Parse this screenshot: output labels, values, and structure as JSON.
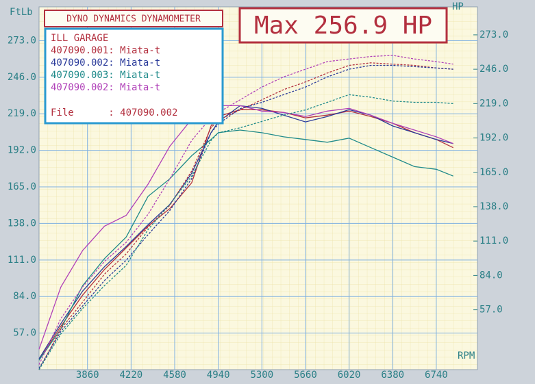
{
  "chart_data": {
    "type": "line",
    "header": "DYNO DYNAMICS DYNAMOMETER",
    "max_label": "Max 256.9 HP",
    "legend_title": "ILL GARAGE",
    "file_line": "File      : 407090.002",
    "ylabel": "FtLb",
    "y2label": "HP",
    "xlabel": "RPM",
    "grid": true,
    "x": [
      3460,
      3640,
      3820,
      4000,
      4180,
      4360,
      4540,
      4720,
      4880,
      4940,
      5120,
      5300,
      5480,
      5660,
      5840,
      6020,
      6200,
      6380,
      6560,
      6740,
      6880
    ],
    "xlim": [
      3460,
      7080
    ],
    "xticks": [
      3860,
      4220,
      4580,
      4940,
      5300,
      5660,
      6020,
      6380,
      6740
    ],
    "ylim": [
      30,
      298
    ],
    "yticks": [
      {
        "value": 57,
        "label": "57.0"
      },
      {
        "value": 84,
        "label": "84.0"
      },
      {
        "value": 111,
        "label": "111.0"
      },
      {
        "value": 138,
        "label": "138.0"
      },
      {
        "value": 165,
        "label": "165.0"
      },
      {
        "value": 192,
        "label": "192.0"
      },
      {
        "value": 219,
        "label": "219.0"
      },
      {
        "value": 246,
        "label": "246.0"
      },
      {
        "value": 273,
        "label": "273.0"
      }
    ],
    "y2lim": [
      10,
      295
    ],
    "y2ticks": [
      {
        "value": 57,
        "label": "57.0"
      },
      {
        "value": 84,
        "label": "84.0"
      },
      {
        "value": 111,
        "label": "111.0"
      },
      {
        "value": 138,
        "label": "138.0"
      },
      {
        "value": 165,
        "label": "165.0"
      },
      {
        "value": 192,
        "label": "192.0"
      },
      {
        "value": 219,
        "label": "219.0"
      },
      {
        "value": 246,
        "label": "246.0"
      },
      {
        "value": 273,
        "label": "273.0"
      }
    ],
    "series": [
      {
        "name": "407090.001: Miata-t",
        "color": "#b3303f",
        "line_style": "solid",
        "values": [
          37,
          62,
          85,
          104,
          120,
          136,
          149,
          168,
          210,
          217,
          222,
          222,
          220,
          216,
          218,
          221,
          217,
          212,
          205,
          200,
          194
        ]
      },
      {
        "name": "407090.002: Miata-t",
        "color": "#2a3a9a",
        "line_style": "solid",
        "values": [
          38,
          64,
          88,
          106,
          121,
          137,
          152,
          175,
          205,
          213,
          225,
          223,
          218,
          213,
          217,
          222,
          218,
          210,
          205,
          200,
          197
        ]
      },
      {
        "name": "407090.003: Miata-t",
        "color": "#1f8a8a",
        "line_style": "solid",
        "values": [
          37,
          60,
          92,
          112,
          128,
          158,
          171,
          188,
          200,
          205,
          207,
          205,
          202,
          200,
          198,
          201,
          194,
          187,
          180,
          178,
          173
        ]
      },
      {
        "name": "407090.002: Miata-t",
        "color": "#b040b8",
        "line_style": "solid",
        "values": [
          45,
          91,
          118,
          136,
          144,
          167,
          195,
          215,
          225,
          225,
          225,
          221,
          220,
          217,
          221,
          223,
          218,
          212,
          207,
          202,
          197
        ]
      },
      {
        "color": "#b3303f",
        "axis": "y2",
        "line_style": "dashed",
        "values": [
          10,
          42,
          63,
          85,
          101,
          122,
          139,
          166,
          200,
          206,
          214,
          222,
          230,
          236,
          243,
          249,
          251,
          250,
          249,
          247,
          246
        ]
      },
      {
        "color": "#2a3a9a",
        "axis": "y2",
        "line_style": "dashed",
        "values": [
          11,
          40,
          60,
          80,
          96,
          116,
          135,
          160,
          196,
          203,
          215,
          220,
          226,
          232,
          240,
          246,
          249,
          249,
          248,
          247,
          246
        ]
      },
      {
        "color": "#1f8a8a",
        "axis": "y2",
        "line_style": "dashed",
        "values": [
          10,
          38,
          58,
          76,
          92,
          120,
          140,
          162,
          190,
          196,
          200,
          205,
          210,
          214,
          220,
          226,
          224,
          221,
          220,
          220,
          219
        ]
      },
      {
        "color": "#b040b8",
        "axis": "y2",
        "line_style": "dashed",
        "values": [
          14,
          50,
          75,
          95,
          110,
          132,
          160,
          190,
          208,
          212,
          222,
          232,
          240,
          246,
          252,
          254,
          256,
          256.9,
          254,
          252,
          250
        ]
      }
    ]
  }
}
